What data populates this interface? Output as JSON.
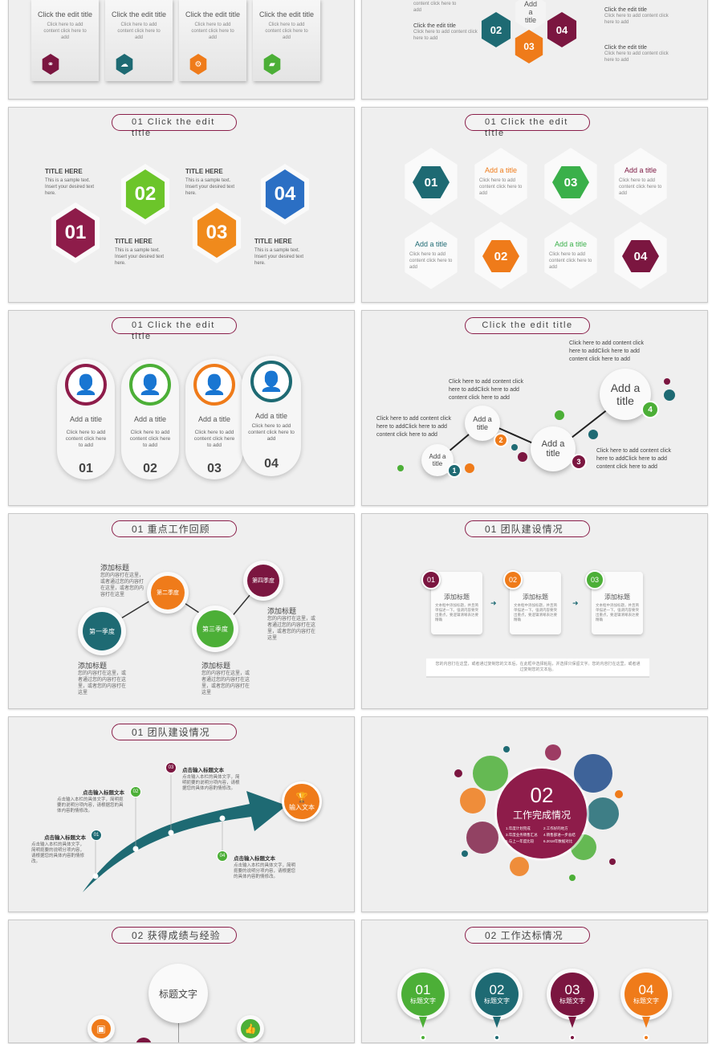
{
  "slide1": {
    "cards": [
      {
        "title": "Click the edit title",
        "body": "Click here to add content click here to add",
        "color": "#7b1640"
      },
      {
        "title": "Click the edit title",
        "body": "Click here to add content click here to add",
        "color": "#1e6a73"
      },
      {
        "title": "Click the edit title",
        "body": "Click here to add content click here to add",
        "color": "#ef7b1a"
      },
      {
        "title": "Click the edit title",
        "body": "Click here to add content click here to add",
        "color": "#4caf37"
      }
    ]
  },
  "slide2": {
    "center": "Add a title",
    "hexes": [
      "02",
      "03",
      "04"
    ],
    "notes": [
      {
        "title": "",
        "body": "content click here to add"
      },
      {
        "title": "Click the edit title",
        "body": "Click here to add content click here to add"
      },
      {
        "title": "Click the edit title",
        "body": "Click here to add content click here to add"
      },
      {
        "title": "Click the edit title",
        "body": "Click here to add content click here to add"
      }
    ]
  },
  "slide3": {
    "tag": "01 Click the edit title",
    "items": [
      {
        "num": "01",
        "head": "TITLE HERE",
        "body": "This is a sample text. Insert your desired text here.",
        "color": "#8e1c4a"
      },
      {
        "num": "02",
        "head": "TITLE HERE",
        "body": "This is a sample text. Insert your desired text here.",
        "color": "#6cc52a"
      },
      {
        "num": "03",
        "head": "TITLE HERE",
        "body": "This is a sample text. Insert your desired text here.",
        "color": "#f08a1c"
      },
      {
        "num": "04",
        "head": "TITLE HERE",
        "body": "This is a sample text. Insert your desired text here.",
        "color": "#2b6fc4"
      }
    ]
  },
  "slide4": {
    "tag": "01 Click the edit title",
    "hexes": [
      {
        "num": "01",
        "color": "#1e6a73"
      },
      {
        "num": "03",
        "color": "#3ab04a"
      },
      {
        "num": "02",
        "color": "#ef7b1a"
      },
      {
        "num": "04",
        "color": "#7b1640"
      }
    ],
    "texts": [
      {
        "title": "Add a title",
        "body": "Click here to add content click here to add",
        "color": "#ef7b1a"
      },
      {
        "title": "Add a title",
        "body": "Click here to add content click here to add",
        "color": "#7b1640"
      },
      {
        "title": "Add a title",
        "body": "Click here to add content click here to add",
        "color": "#1e6a73"
      },
      {
        "title": "Add a title",
        "body": "Click here to add content click here to add",
        "color": "#3ab04a"
      }
    ]
  },
  "slide5": {
    "tag": "01 Click the edit title",
    "items": [
      {
        "title": "Add a title",
        "body": "Click here to add content click here to add",
        "num": "01",
        "color": "#8e1c4a"
      },
      {
        "title": "Add a title",
        "body": "Click here to add content click here to add",
        "num": "02",
        "color": "#4caf37"
      },
      {
        "title": "Add a title",
        "body": "Click here to add content click here to add",
        "num": "03",
        "color": "#ef7b1a"
      },
      {
        "title": "Add a title",
        "body": "Click here to add content click here to add",
        "num": "04",
        "color": "#1e6a73"
      }
    ]
  },
  "slide6": {
    "tag": "Click the edit title",
    "nodes": [
      {
        "label": "Add a title",
        "num": "1",
        "color": "#1e6a73"
      },
      {
        "label": "Add a title",
        "num": "2",
        "color": "#ef7b1a"
      },
      {
        "label": "Add a title",
        "num": "3",
        "color": "#7b1640"
      },
      {
        "label": "Add a title",
        "num": "4",
        "color": "#4caf37"
      }
    ],
    "notes": [
      "Click here to add content click here to addClick here to add content click here to add",
      "Click here to add content click here to addClick here to add content click here to add",
      "Click here to add content click here to addClick here to add content click here to add",
      "Click here to add content click here to addClick here to add content click here to add"
    ]
  },
  "slide7": {
    "tag": "01 重点工作回顾",
    "nodes": [
      {
        "label": "第一季度",
        "color": "#1e6a73"
      },
      {
        "label": "第二季度",
        "color": "#ef7b1a"
      },
      {
        "label": "第三季度",
        "color": "#4caf37"
      },
      {
        "label": "第四季度",
        "color": "#7b1640"
      }
    ],
    "notes": [
      {
        "title": "添加标题",
        "body": "您的内容打在这里，或者通过您的内容打在这里，或者您的内容打在这里"
      },
      {
        "title": "添加标题",
        "body": "您的内容打在这里，或者通过您的内容打在这里，或者您的内容打在这里"
      },
      {
        "title": "添加标题",
        "body": "您的内容打在这里，或者通过您的内容打在这里，或者您的内容打在这里"
      },
      {
        "title": "添加标题",
        "body": "您的内容打在这里，或者通过您的内容打在这里，或者您的内容打在这里"
      }
    ]
  },
  "slide8": {
    "tag": "01 团队建设情况",
    "cards": [
      {
        "num": "01",
        "title": "添加标题",
        "body": "文本框中添加标题，并且简单描述一下。强调内容要突出重点，要逻辑清晰表达要精确",
        "color": "#7b1640"
      },
      {
        "num": "02",
        "title": "添加标题",
        "body": "文本框中添加标题，并且简单描述一下。强调内容要突出重点，要逻辑清晰表达要精确",
        "color": "#ef7b1a"
      },
      {
        "num": "03",
        "title": "添加标题",
        "body": "文本框中添加标题，并且简单描述一下。强调内容要突出重点，要逻辑清晰表达要精确",
        "color": "#4caf37"
      }
    ],
    "footer": "您的内容打在这里，或者通过复制您的文本后，在此框中选择粘贴，并选择只保留文字。您的内容打在这里，或者通过复制您的文本后。"
  },
  "slide9": {
    "tag": "01 团队建设情况",
    "button": "输入文本",
    "items": [
      {
        "num": "01",
        "title": "点击输入标题文本",
        "body": "点击输入本栏的具体文字，简明扼要的说明分项内容，请根据您的具体内容酌情修改。"
      },
      {
        "num": "02",
        "title": "点击输入标题文本",
        "body": "点击输入本栏的具体文字，简明扼要的说明分项内容，请根据您的具体内容酌情修改。"
      },
      {
        "num": "03",
        "title": "点击输入标题文本",
        "body": "点击输入本栏的具体文字，简明扼要的说明分项内容，请根据您的具体内容酌情修改。"
      },
      {
        "num": "04",
        "title": "点击输入标题文本",
        "body": "点击输入本栏的具体文字，简明扼要的说明分项内容，请根据您的具体内容酌情修改。"
      }
    ]
  },
  "slide10": {
    "num": "02",
    "title": "工作完成情况",
    "list": [
      "1.年度计划完成",
      "2.工作好的地方",
      "3.年度业务销售汇总",
      "4.销售部进一步总结",
      "5.与上一年度比较",
      "6.2018年数据对比"
    ]
  },
  "slide11": {
    "tag": "02 获得成绩与经验",
    "center": "标题文字"
  },
  "slide12": {
    "tag": "02 工作达标情况",
    "items": [
      {
        "num": "01",
        "label": "标题文字",
        "color": "#4caf37"
      },
      {
        "num": "02",
        "label": "标题文字",
        "color": "#1e6a73"
      },
      {
        "num": "03",
        "label": "标题文字",
        "color": "#7b1640"
      },
      {
        "num": "04",
        "label": "标题文字",
        "color": "#ef7b1a"
      }
    ]
  }
}
